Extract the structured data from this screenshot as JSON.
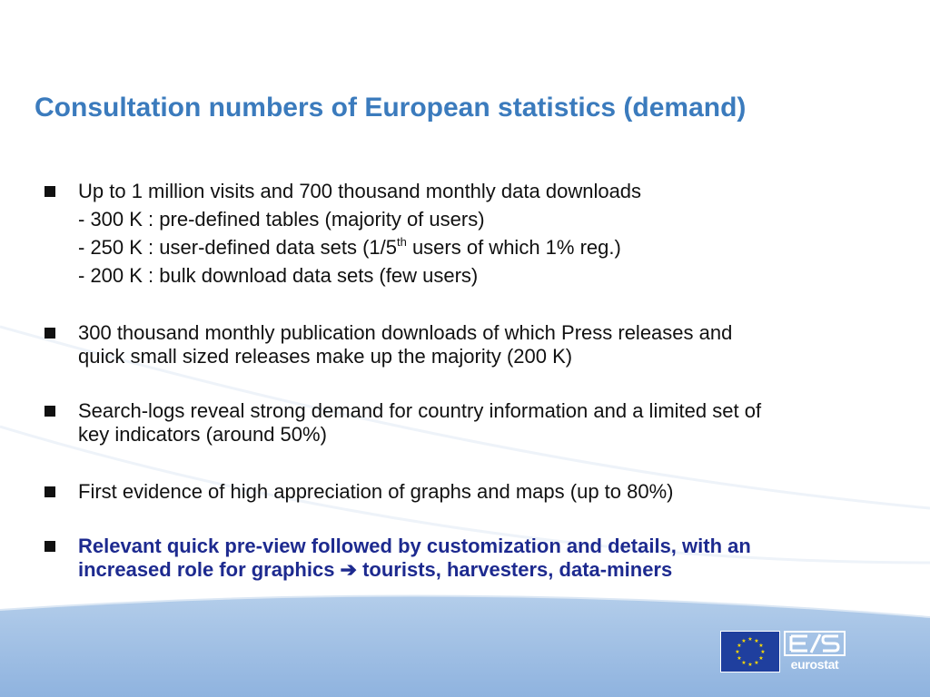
{
  "slide": {
    "title": "Consultation numbers of European statistics (demand)"
  },
  "bullets": [
    {
      "text": "Up to 1 million visits and 700 thousand monthly data downloads",
      "sub": [
        "- 300 K : pre-defined tables (majority of users)",
        "- 250 K : user-defined data sets (1/5",
        "th",
        " users of which  1% reg.)",
        "- 200 K : bulk download data sets (few users)"
      ]
    },
    {
      "line1": "300 thousand monthly publication downloads of which Press releases and",
      "line2": "quick small sized releases make up the majority (200 K)"
    },
    {
      "line1": "Search-logs reveal strong demand for country information and a limited set of",
      "line2": "key indicators (around 50%)"
    },
    {
      "line1": "First evidence of high appreciation of graphs and maps (up to 80%)"
    },
    {
      "line1": "Relevant quick pre-view followed by customization and details, with an",
      "line2a": "increased role for graphics ",
      "arrow": "➔",
      "line2b": " tourists, harvesters, data-miners"
    }
  ],
  "footer": {
    "logo_text": "eurostat"
  },
  "colors": {
    "title": "#3b7bbd",
    "highlight": "#1d2a8f",
    "band": "#9dbde3",
    "eu_blue": "#1f3f9e",
    "eu_star": "#ffdd00"
  }
}
